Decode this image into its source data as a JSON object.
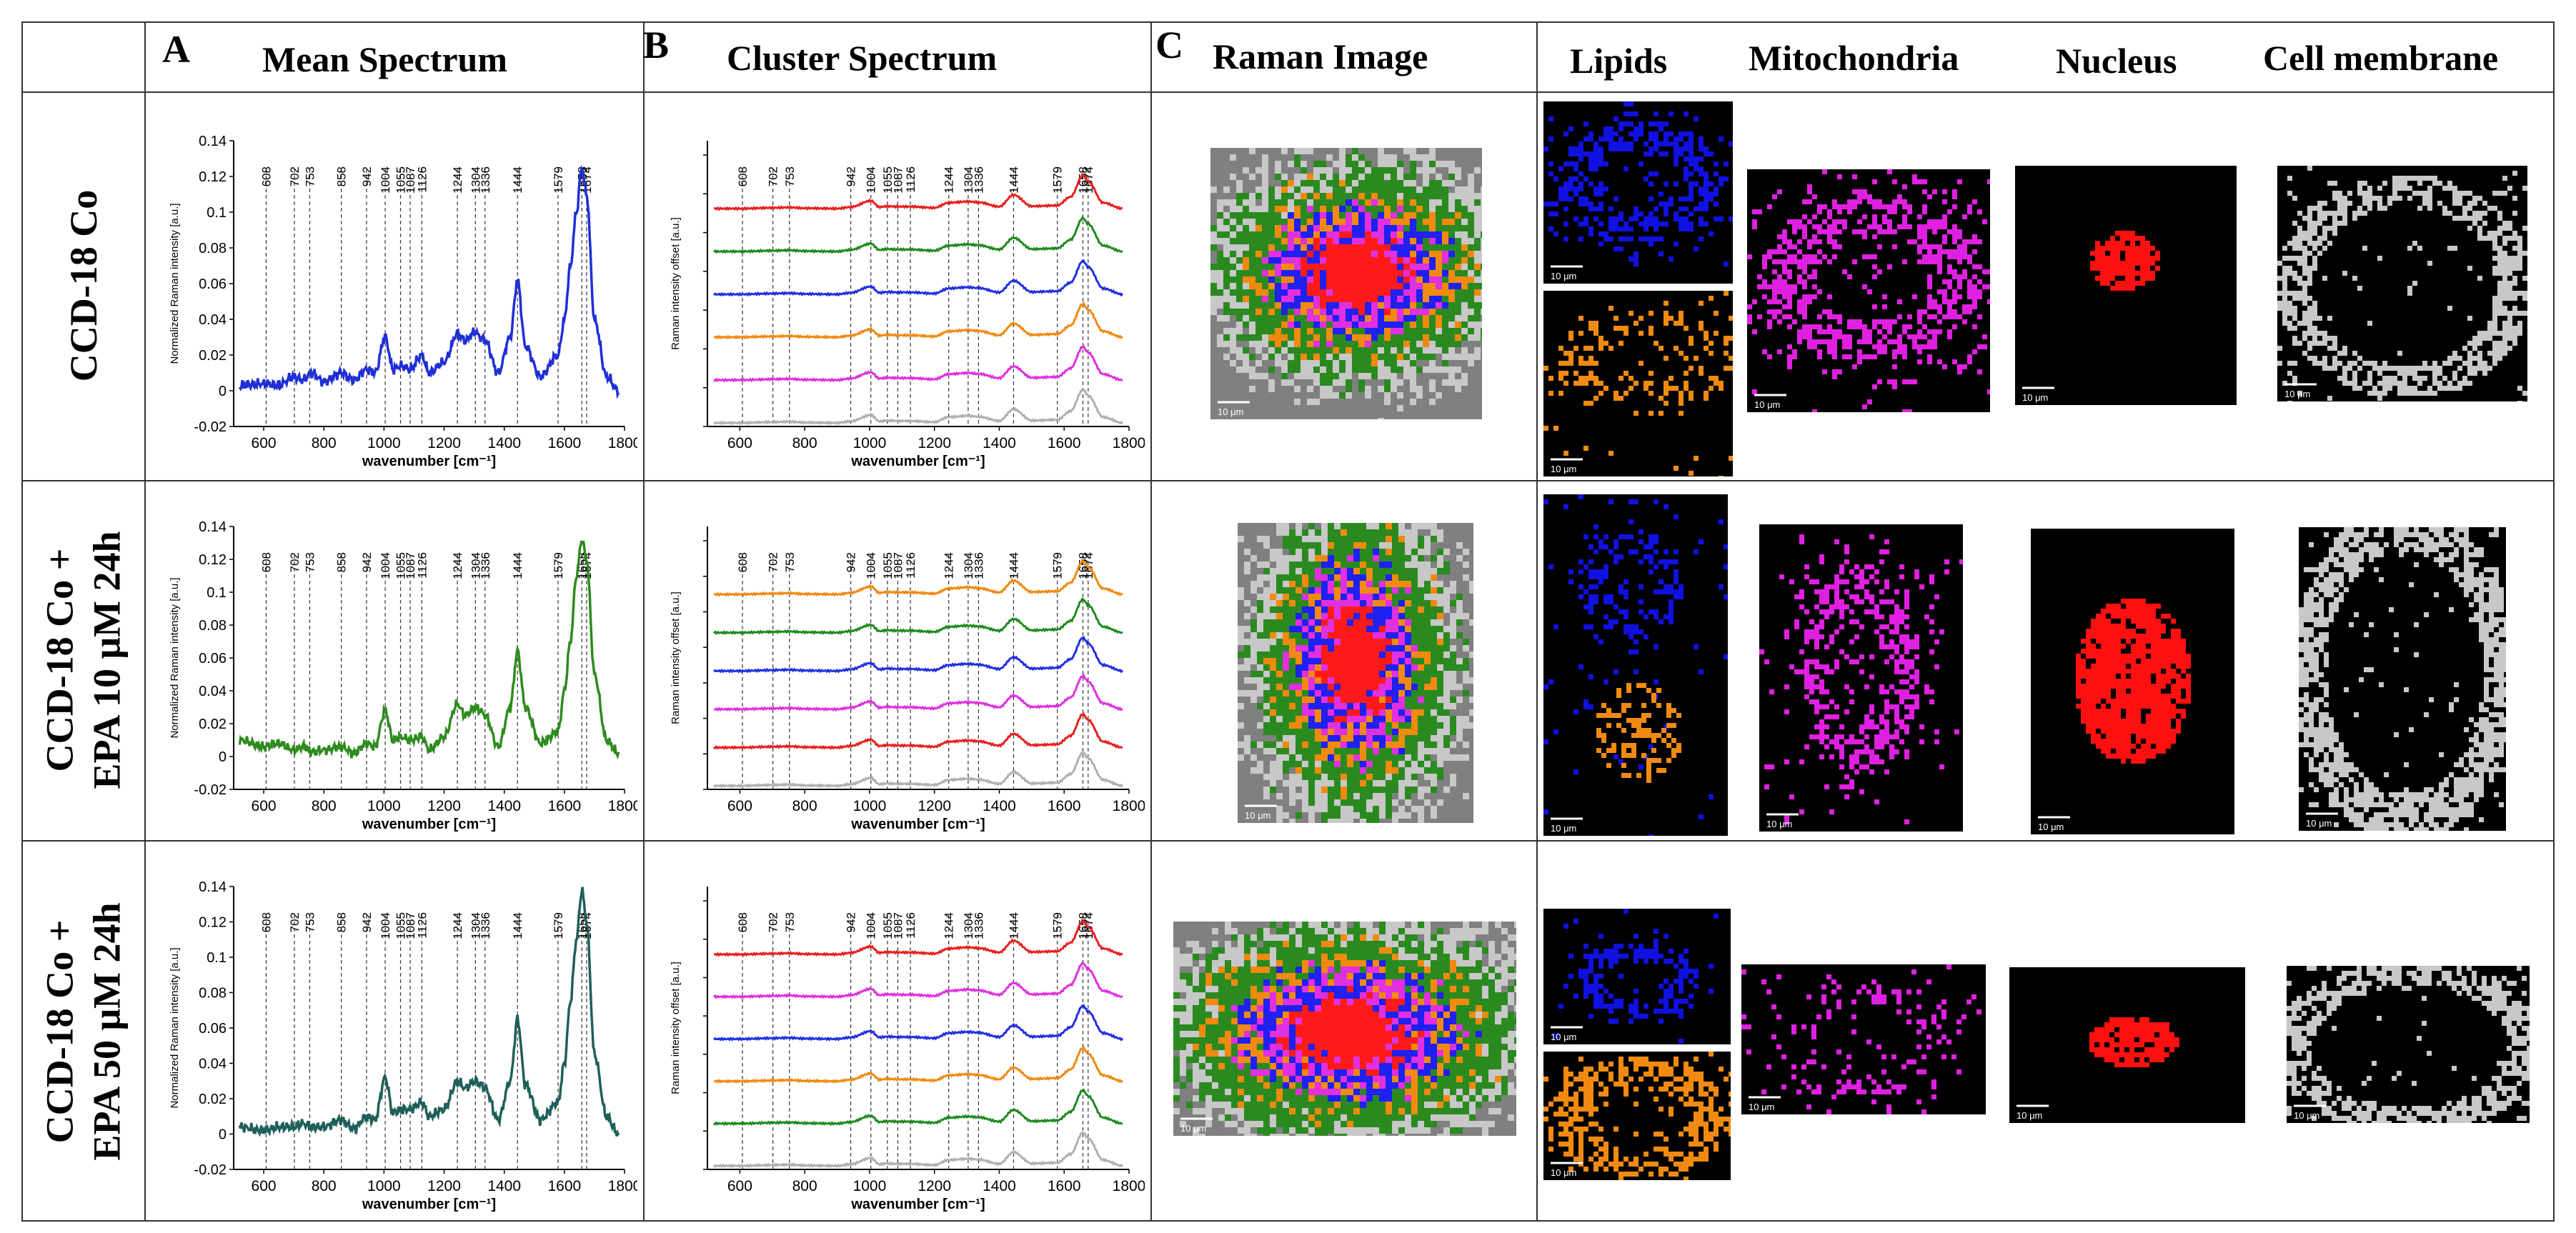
{
  "headers": {
    "letter_a": "A",
    "letter_b": "B",
    "letter_c": "C",
    "mean_spectrum": "Mean Spectrum",
    "cluster_spectrum": "Cluster Spectrum",
    "raman_image": "Raman Image",
    "lipids": "Lipids",
    "mitochondria": "Mitochondria",
    "nucleus": "Nucleus",
    "cell_membrane": "Cell membrane"
  },
  "rows": [
    {
      "line1": "CCD-18 Co",
      "line2": ""
    },
    {
      "line1": "CCD-18 Co +",
      "line2": "EPA 10 μM 24h"
    },
    {
      "line1": "CCD-18 Co +",
      "line2": "EPA 50 μM 24h"
    }
  ],
  "scale_label": "10 μm",
  "colors": {
    "row1_mean": "#1f2fd6",
    "row2_mean": "#2e8b1f",
    "row3_mean": "#1f5f5a",
    "lipid_blue": "#1010e0",
    "lipid_orange": "#f08a10",
    "mitochondria": "#e020e0",
    "nucleus": "#ff1010",
    "membrane": "#c8c8c8",
    "map_bg": "#808080"
  },
  "chart_data": [
    {
      "id": "mean_spectrum",
      "type": "line",
      "xlabel": "wavenumber [cm⁻¹]",
      "ylabel": "Normalized Raman intensity [a.u.]",
      "xlim": [
        500,
        1800
      ],
      "ylim": [
        -0.02,
        0.14
      ],
      "xticks": [
        "600",
        "800",
        "1000",
        "1200",
        "1400",
        "1600",
        "1800"
      ],
      "yticks": [
        "-0.02",
        "0",
        "0.02",
        "0.04",
        "0.06",
        "0.08",
        "0.1",
        "0.12",
        "0.14"
      ],
      "peaks": [
        "608",
        "702",
        "753",
        "858",
        "942",
        "1004",
        "1055",
        "1087",
        "1126",
        "1244",
        "1304",
        "1336",
        "1444",
        "1579",
        "1658",
        "1674"
      ],
      "panels": [
        {
          "row": 1,
          "peaks_shown": [
            "608",
            "702",
            "753",
            "858",
            "942",
            "1004",
            "1055",
            "1087",
            "1126",
            "1244",
            "1304",
            "1336",
            "1444",
            "1579",
            "1658",
            "1674"
          ]
        },
        {
          "row": 2,
          "peaks_shown": [
            "608",
            "702",
            "753",
            "858",
            "942",
            "1004",
            "1055",
            "1087",
            "1126",
            "1244",
            "1304",
            "1336",
            "1444",
            "1579",
            "1658",
            "1674"
          ]
        },
        {
          "row": 3,
          "peaks_shown": [
            "608",
            "702",
            "753",
            "858",
            "942",
            "1004",
            "1055",
            "1087",
            "1126",
            "1244",
            "1304",
            "1336",
            "1444",
            "1579",
            "1658",
            "1674"
          ]
        }
      ],
      "series": [
        {
          "row": 1,
          "x": [
            520,
            600,
            650,
            700,
            730,
            760,
            800,
            858,
            900,
            942,
            970,
            1004,
            1030,
            1055,
            1087,
            1126,
            1150,
            1200,
            1244,
            1270,
            1304,
            1320,
            1336,
            1380,
            1420,
            1444,
            1470,
            1520,
            1579,
            1600,
            1620,
            1640,
            1658,
            1674,
            1700,
            1740,
            1780
          ],
          "y": [
            0.003,
            0.004,
            0.003,
            0.008,
            0.006,
            0.01,
            0.005,
            0.01,
            0.006,
            0.012,
            0.01,
            0.03,
            0.012,
            0.014,
            0.012,
            0.02,
            0.01,
            0.016,
            0.032,
            0.028,
            0.033,
            0.03,
            0.028,
            0.01,
            0.03,
            0.062,
            0.025,
            0.008,
            0.02,
            0.04,
            0.07,
            0.1,
            0.125,
            0.11,
            0.04,
            0.008,
            0.0
          ]
        },
        {
          "row": 2,
          "x": [
            520,
            600,
            650,
            700,
            730,
            760,
            800,
            858,
            900,
            942,
            970,
            1004,
            1030,
            1055,
            1087,
            1126,
            1150,
            1200,
            1244,
            1270,
            1304,
            1320,
            1336,
            1380,
            1420,
            1444,
            1470,
            1520,
            1579,
            1600,
            1620,
            1640,
            1658,
            1674,
            1700,
            1740,
            1780
          ],
          "y": [
            0.01,
            0.006,
            0.008,
            0.004,
            0.006,
            0.003,
            0.004,
            0.006,
            0.002,
            0.008,
            0.006,
            0.028,
            0.01,
            0.012,
            0.01,
            0.012,
            0.004,
            0.012,
            0.032,
            0.025,
            0.03,
            0.028,
            0.025,
            0.006,
            0.03,
            0.064,
            0.03,
            0.008,
            0.015,
            0.04,
            0.07,
            0.11,
            0.132,
            0.12,
            0.05,
            0.01,
            0.002
          ]
        },
        {
          "row": 3,
          "x": [
            520,
            600,
            650,
            700,
            730,
            760,
            800,
            858,
            900,
            942,
            970,
            1004,
            1030,
            1055,
            1087,
            1126,
            1150,
            1200,
            1244,
            1270,
            1304,
            1320,
            1336,
            1380,
            1420,
            1444,
            1470,
            1520,
            1579,
            1600,
            1620,
            1640,
            1658,
            1674,
            1700,
            1740,
            1780
          ],
          "y": [
            0.004,
            0.002,
            0.004,
            0.004,
            0.006,
            0.004,
            0.004,
            0.008,
            0.003,
            0.01,
            0.008,
            0.032,
            0.012,
            0.014,
            0.014,
            0.018,
            0.01,
            0.014,
            0.03,
            0.026,
            0.03,
            0.028,
            0.026,
            0.008,
            0.03,
            0.065,
            0.028,
            0.008,
            0.018,
            0.04,
            0.075,
            0.11,
            0.138,
            0.12,
            0.045,
            0.01,
            0.0
          ]
        }
      ]
    },
    {
      "id": "cluster_spectrum",
      "type": "line",
      "xlabel": "wavenumber [cm⁻¹]",
      "ylabel": "Raman intensity offset [a.u.]",
      "xlim": [
        500,
        1800
      ],
      "xticks": [
        "600",
        "800",
        "1000",
        "1200",
        "1400",
        "1600",
        "1800"
      ],
      "peaks": [
        "608",
        "702",
        "753",
        "942",
        "1004",
        "1055",
        "1087",
        "1126",
        "1244",
        "1304",
        "1336",
        "1444",
        "1579",
        "1658",
        "1674"
      ],
      "panels": [
        {
          "row": 1,
          "order": [
            "#e82020",
            "#1f8a1f",
            "#2030e0",
            "#f08a10",
            "#e030e0",
            "#b0b0b0"
          ]
        },
        {
          "row": 2,
          "order": [
            "#f08a10",
            "#1f8a1f",
            "#2030e0",
            "#e030e0",
            "#e82020",
            "#b0b0b0"
          ]
        },
        {
          "row": 3,
          "order": [
            "#e82020",
            "#e030e0",
            "#2030e0",
            "#f08a10",
            "#1f8a1f",
            "#b0b0b0"
          ]
        }
      ]
    }
  ]
}
